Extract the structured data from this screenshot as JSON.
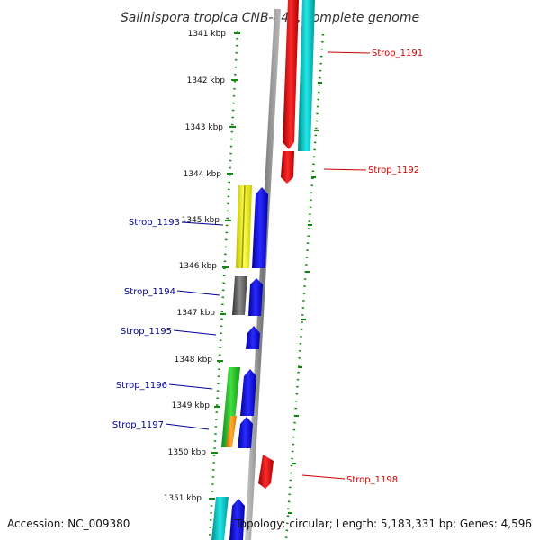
{
  "title": "Salinispora tropica CNB-440, complete genome",
  "footer": {
    "accession": "Accession: NC_009380",
    "topology": "Topology: circular; Length: 5,183,331 bp; Genes: 4,596"
  },
  "ticks": [
    "1341 kbp",
    "1342 kbp",
    "1343 kbp",
    "1344 kbp",
    "1345 kbp",
    "1346 kbp",
    "1347 kbp",
    "1348 kbp",
    "1349 kbp",
    "1350 kbp",
    "1351 kbp"
  ],
  "genes": [
    {
      "label": "Strop_1191",
      "strand": "forward",
      "color": "#ee1111"
    },
    {
      "label": "Strop_1192",
      "strand": "forward",
      "color": "#ee1111"
    },
    {
      "label": "Strop_1193",
      "strand": "reverse",
      "color": "#1111ee"
    },
    {
      "label": "Strop_1194",
      "strand": "reverse",
      "color": "#1111ee"
    },
    {
      "label": "Strop_1195",
      "strand": "reverse",
      "color": "#1111ee"
    },
    {
      "label": "Strop_1196",
      "strand": "reverse",
      "color": "#1111ee"
    },
    {
      "label": "Strop_1197",
      "strand": "reverse",
      "color": "#1111ee"
    },
    {
      "label": "Strop_1198",
      "strand": "forward",
      "color": "#ee1111"
    }
  ],
  "colors": {
    "forward_label": "#cc0000",
    "reverse_label": "#000099",
    "tick_green": "#118811",
    "backbone": "#888888"
  }
}
